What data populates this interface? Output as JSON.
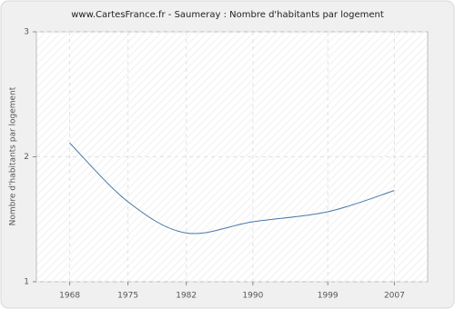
{
  "chart_data": {
    "type": "line",
    "title": "www.CartesFrance.fr - Saumeray : Nombre d'habitants par logement",
    "y_label": "Nombre d'habitants par logement",
    "x": [
      1968,
      1975,
      1982,
      1990,
      1999,
      2007
    ],
    "values": [
      2.11,
      1.64,
      1.39,
      1.48,
      1.56,
      1.73
    ],
    "color": "#4a76a8",
    "xlim": [
      1964,
      2011
    ],
    "xticks": [
      1968,
      1975,
      1982,
      1990,
      1999,
      2007
    ],
    "ylim": [
      1,
      3
    ],
    "yticks": [
      1,
      2,
      3
    ],
    "grid": true
  }
}
